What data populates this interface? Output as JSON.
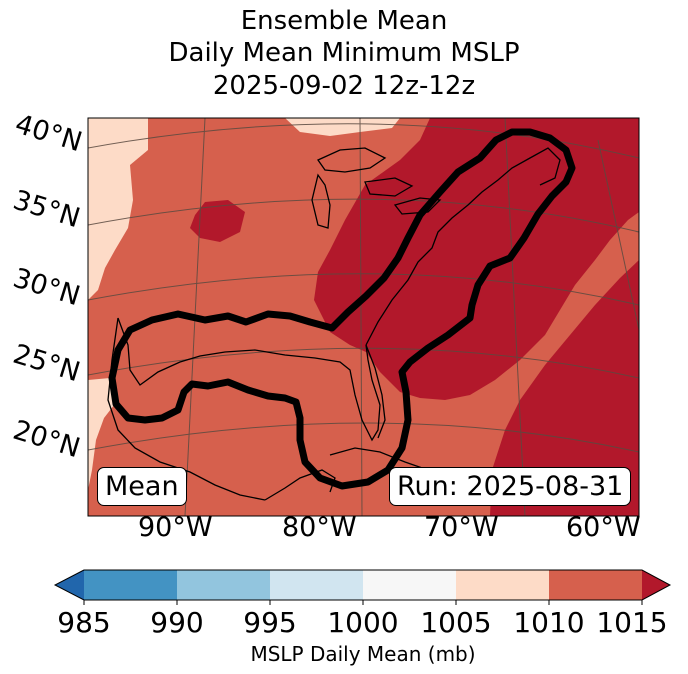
{
  "title": {
    "line1": "Ensemble Mean",
    "line2": "Daily Mean Minimum MSLP",
    "line3": "2025-09-02 12z-12z"
  },
  "map": {
    "lat_labels": [
      "40°N",
      "35°N",
      "30°N",
      "25°N",
      "20°N"
    ],
    "lon_labels": [
      "90°W",
      "80°W",
      "70°W",
      "60°W"
    ],
    "mean_label": "Mean",
    "run_label": "Run: 2025-08-31",
    "colors": {
      "c1005_1010": "#fddbc7",
      "c1010_1015": "#d6604d",
      "c1015_plus": "#b2182b",
      "contour": "#000000",
      "grid": "#5a4a40"
    }
  },
  "colorbar": {
    "ticks": [
      "985",
      "990",
      "995",
      "1000",
      "1005",
      "1010",
      "1015"
    ],
    "colors": [
      "#2166ac",
      "#4393c3",
      "#92c5de",
      "#d1e5f0",
      "#f7f7f7",
      "#fddbc7",
      "#d6604d",
      "#b2182b"
    ],
    "label": "MSLP Daily Mean (mb)"
  }
}
